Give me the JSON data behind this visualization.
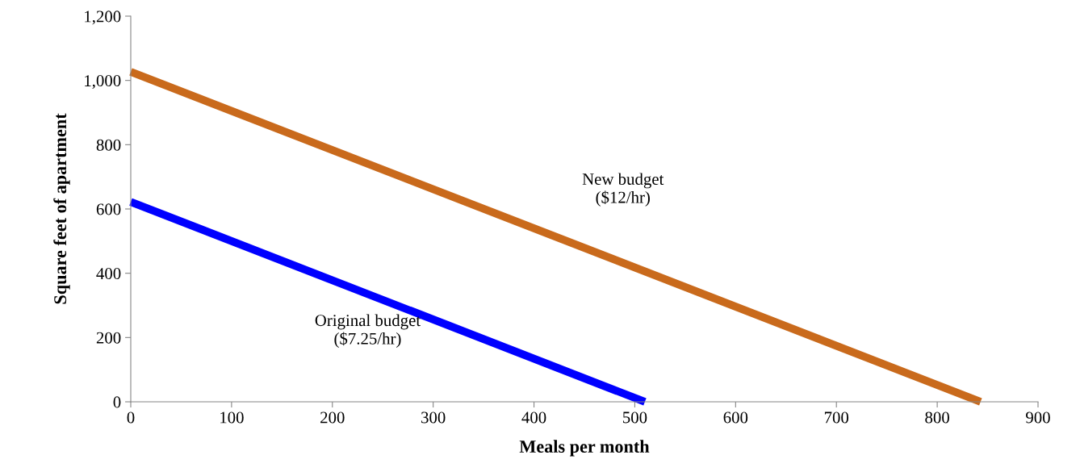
{
  "chart_data": {
    "type": "line",
    "xlabel": "Meals per month",
    "ylabel": "Square feet of apartment",
    "series": [
      {
        "name": "Original budget\n($7.25/hr)",
        "color": "#0000ff",
        "x": [
          0,
          510
        ],
        "values": [
          622,
          0
        ]
      },
      {
        "name": "New budget\n($12/hr)",
        "color": "#c96a1c",
        "x": [
          0,
          843
        ],
        "values": [
          1027,
          0
        ]
      }
    ],
    "xlim": [
      0,
      900
    ],
    "xticks": [
      0,
      100,
      200,
      300,
      400,
      500,
      600,
      700,
      800,
      900
    ],
    "ylim": [
      0,
      1200
    ],
    "yticks": [
      0,
      {
        "value": 200,
        "label": "200"
      },
      {
        "value": 400,
        "label": "400"
      },
      {
        "value": 600,
        "label": "600"
      },
      {
        "value": 800,
        "label": "800"
      },
      {
        "value": 1000,
        "label": "1,000"
      },
      {
        "value": 1200,
        "label": "1,200"
      }
    ],
    "grid": false,
    "legend": false,
    "marker": "none",
    "line_style": "solid"
  }
}
